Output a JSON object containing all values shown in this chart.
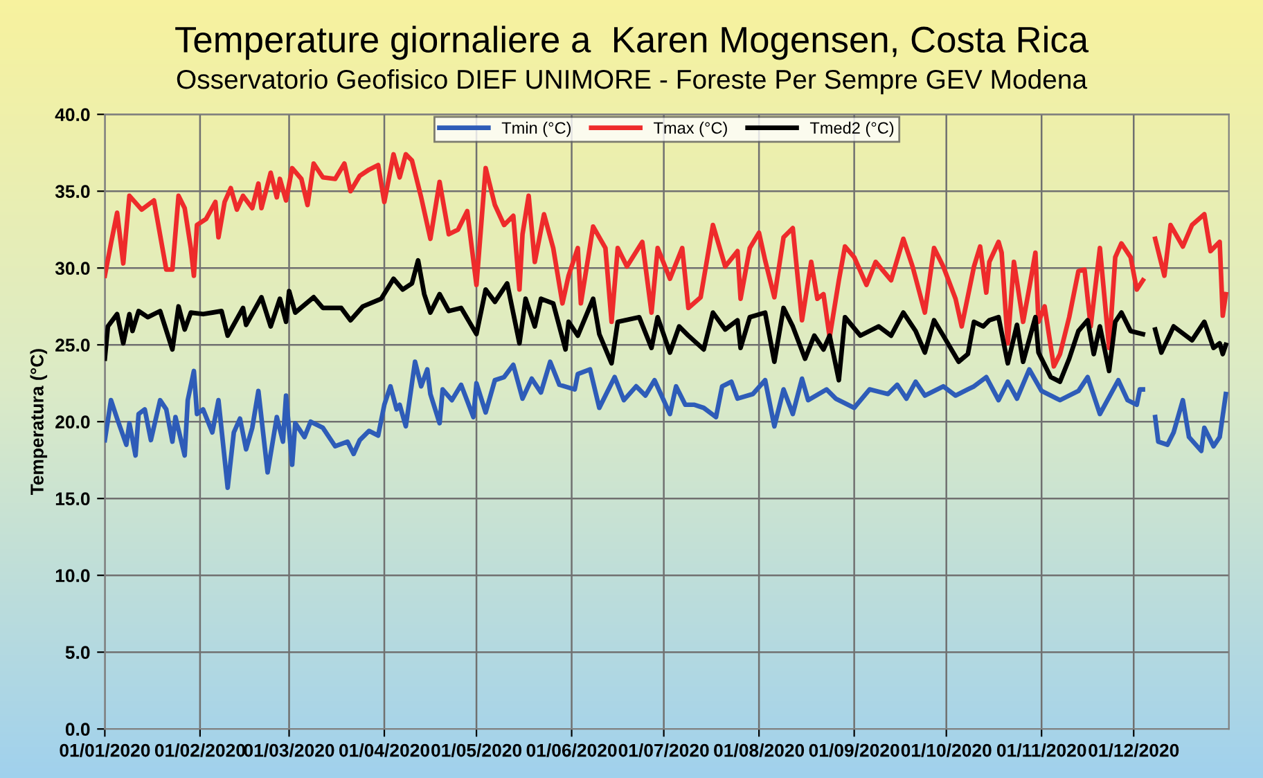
{
  "chart_data": {
    "type": "line",
    "title": "Temperature giornaliere a  Karen Mogensen, Costa Rica",
    "subtitle": "Osservatorio Geofisico DIEF UNIMORE - Foreste Per Sempre GEV Modena",
    "ylabel": "Temperatura (°C)",
    "xlim": [
      "2020-01-01",
      "2021-01-01"
    ],
    "xticks": [
      {
        "value": "2020-01-01",
        "label": "01/01/2020"
      },
      {
        "value": "2020-02-01",
        "label": "01/02/2020"
      },
      {
        "value": "2020-03-01",
        "label": "01/03/2020"
      },
      {
        "value": "2020-04-01",
        "label": "01/04/2020"
      },
      {
        "value": "2020-05-01",
        "label": "01/05/2020"
      },
      {
        "value": "2020-06-01",
        "label": "01/06/2020"
      },
      {
        "value": "2020-07-01",
        "label": "01/07/2020"
      },
      {
        "value": "2020-08-01",
        "label": "01/08/2020"
      },
      {
        "value": "2020-09-01",
        "label": "01/09/2020"
      },
      {
        "value": "2020-10-01",
        "label": "01/10/2020"
      },
      {
        "value": "2020-11-01",
        "label": "01/11/2020"
      },
      {
        "value": "2020-12-01",
        "label": "01/12/2020"
      }
    ],
    "ylim": [
      0,
      40
    ],
    "yticks": [
      {
        "value": 0,
        "label": "0.0"
      },
      {
        "value": 5,
        "label": "5.0"
      },
      {
        "value": 10,
        "label": "10.0"
      },
      {
        "value": 15,
        "label": "15.0"
      },
      {
        "value": 20,
        "label": "20.0"
      },
      {
        "value": 25,
        "label": "25.0"
      },
      {
        "value": 30,
        "label": "30.0"
      },
      {
        "value": 35,
        "label": "35.0"
      },
      {
        "value": 40,
        "label": "40.0"
      }
    ],
    "grid": true,
    "legend": "top",
    "marker": "none",
    "line_style": "solid",
    "series": [
      {
        "name": "Tmin (°C)",
        "color": "#2e5cb8",
        "x": [
          "2020-01-01",
          "2020-01-03",
          "2020-01-05",
          "2020-01-08",
          "2020-01-09",
          "2020-01-11",
          "2020-01-12",
          "2020-01-14",
          "2020-01-16",
          "2020-01-19",
          "2020-01-21",
          "2020-01-23",
          "2020-01-24",
          "2020-01-27",
          "2020-01-28",
          "2020-01-30",
          "2020-01-31",
          "2020-02-02",
          "2020-02-05",
          "2020-02-07",
          "2020-02-10",
          "2020-02-12",
          "2020-02-14",
          "2020-02-16",
          "2020-02-18",
          "2020-02-20",
          "2020-02-23",
          "2020-02-26",
          "2020-02-28",
          "2020-02-29",
          "2020-03-02",
          "2020-03-03",
          "2020-03-06",
          "2020-03-08",
          "2020-03-12",
          "2020-03-16",
          "2020-03-20",
          "2020-03-22",
          "2020-03-24",
          "2020-03-27",
          "2020-03-30",
          "2020-04-01",
          "2020-04-03",
          "2020-04-05",
          "2020-04-06",
          "2020-04-08",
          "2020-04-11",
          "2020-04-13",
          "2020-04-15",
          "2020-04-16",
          "2020-04-19",
          "2020-04-20",
          "2020-04-23",
          "2020-04-26",
          "2020-04-30",
          "2020-05-01",
          "2020-05-04",
          "2020-05-07",
          "2020-05-10",
          "2020-05-13",
          "2020-05-16",
          "2020-05-19",
          "2020-05-22",
          "2020-05-25",
          "2020-05-28",
          "2020-06-02",
          "2020-06-03",
          "2020-06-07",
          "2020-06-10",
          "2020-06-15",
          "2020-06-18",
          "2020-06-22",
          "2020-06-25",
          "2020-06-28",
          "2020-07-03",
          "2020-07-05",
          "2020-07-08",
          "2020-07-11",
          "2020-07-14",
          "2020-07-18",
          "2020-07-20",
          "2020-07-23",
          "2020-07-25",
          "2020-07-30",
          "2020-08-03",
          "2020-08-06",
          "2020-08-09",
          "2020-08-12",
          "2020-08-15",
          "2020-08-17",
          "2020-08-23",
          "2020-08-26",
          "2020-09-01",
          "2020-09-06",
          "2020-09-12",
          "2020-09-15",
          "2020-09-18",
          "2020-09-21",
          "2020-09-24",
          "2020-09-30",
          "2020-10-04",
          "2020-10-08",
          "2020-10-10",
          "2020-10-14",
          "2020-10-18",
          "2020-10-21",
          "2020-10-24",
          "2020-10-28",
          "2020-11-01",
          "2020-11-07",
          "2020-11-13",
          "2020-11-16",
          "2020-11-20",
          "2020-11-26",
          "2020-11-29",
          "2020-12-02",
          "2020-12-03",
          "2020-12-04",
          "2020-12-06",
          "2020-12-08",
          "2020-12-09",
          "2020-12-12",
          "2020-12-14",
          "2020-12-17",
          "2020-12-19",
          "2020-12-23",
          "2020-12-24",
          "2020-12-27",
          "2020-12-29",
          "2020-12-31"
        ],
        "values": [
          18.8,
          21.4,
          20.2,
          18.5,
          19.9,
          17.8,
          20.5,
          20.8,
          18.8,
          21.4,
          20.8,
          18.7,
          20.3,
          17.8,
          21.4,
          23.3,
          20.5,
          20.8,
          19.3,
          21.4,
          15.7,
          19.3,
          20.2,
          18.2,
          19.6,
          22.0,
          16.7,
          20.3,
          18.7,
          21.7,
          17.2,
          19.9,
          19.0,
          20.0,
          19.6,
          18.4,
          18.7,
          17.9,
          18.8,
          19.4,
          19.1,
          21.1,
          22.3,
          20.8,
          21.1,
          19.7,
          23.9,
          22.3,
          23.4,
          21.8,
          19.9,
          22.1,
          21.4,
          22.4,
          20.3,
          22.5,
          20.6,
          22.7,
          22.9,
          23.7,
          21.5,
          22.8,
          21.9,
          23.9,
          22.4,
          22.1,
          23.1,
          23.4,
          20.9,
          22.9,
          21.4,
          22.3,
          21.7,
          22.7,
          20.5,
          22.3,
          21.1,
          21.1,
          20.9,
          20.3,
          22.3,
          22.6,
          21.5,
          21.8,
          22.7,
          19.7,
          22.1,
          20.5,
          22.8,
          21.4,
          22.1,
          21.5,
          20.9,
          22.1,
          21.8,
          22.4,
          21.5,
          22.6,
          21.7,
          22.3,
          21.7,
          22.1,
          22.3,
          22.9,
          21.4,
          22.6,
          21.5,
          23.4,
          22.0,
          21.4,
          22.0,
          22.9,
          20.5,
          22.7,
          21.4,
          21.1,
          22.1,
          22.1,
          null,
          20.3,
          18.7,
          18.5,
          19.3,
          21.4,
          19.0,
          18.1,
          19.6,
          18.4,
          19.0,
          21.8
        ]
      },
      {
        "name": "Tmax (°C)",
        "color": "#ee2b2b",
        "x": [
          "2020-01-01",
          "2020-01-03",
          "2020-01-05",
          "2020-01-07",
          "2020-01-09",
          "2020-01-13",
          "2020-01-17",
          "2020-01-21",
          "2020-01-23",
          "2020-01-25",
          "2020-01-27",
          "2020-01-29",
          "2020-01-30",
          "2020-01-31",
          "2020-02-03",
          "2020-02-06",
          "2020-02-07",
          "2020-02-09",
          "2020-02-11",
          "2020-02-13",
          "2020-02-15",
          "2020-02-18",
          "2020-02-20",
          "2020-02-21",
          "2020-02-24",
          "2020-02-26",
          "2020-02-27",
          "2020-02-29",
          "2020-03-02",
          "2020-03-05",
          "2020-03-07",
          "2020-03-09",
          "2020-03-12",
          "2020-03-16",
          "2020-03-19",
          "2020-03-21",
          "2020-03-24",
          "2020-03-27",
          "2020-03-30",
          "2020-04-01",
          "2020-04-04",
          "2020-04-06",
          "2020-04-08",
          "2020-04-10",
          "2020-04-13",
          "2020-04-16",
          "2020-04-19",
          "2020-04-22",
          "2020-04-25",
          "2020-04-28",
          "2020-05-01",
          "2020-05-04",
          "2020-05-07",
          "2020-05-10",
          "2020-05-13",
          "2020-05-15",
          "2020-05-16",
          "2020-05-18",
          "2020-05-20",
          "2020-05-23",
          "2020-05-26",
          "2020-05-29",
          "2020-05-31",
          "2020-06-03",
          "2020-06-04",
          "2020-06-08",
          "2020-06-12",
          "2020-06-14",
          "2020-06-16",
          "2020-06-19",
          "2020-06-24",
          "2020-06-27",
          "2020-06-29",
          "2020-07-03",
          "2020-07-07",
          "2020-07-09",
          "2020-07-13",
          "2020-07-17",
          "2020-07-21",
          "2020-07-25",
          "2020-07-26",
          "2020-07-29",
          "2020-08-01",
          "2020-08-03",
          "2020-08-06",
          "2020-08-09",
          "2020-08-12",
          "2020-08-15",
          "2020-08-18",
          "2020-08-20",
          "2020-08-22",
          "2020-08-24",
          "2020-08-27",
          "2020-08-29",
          "2020-09-01",
          "2020-09-05",
          "2020-09-08",
          "2020-09-13",
          "2020-09-17",
          "2020-09-20",
          "2020-09-24",
          "2020-09-27",
          "2020-09-30",
          "2020-10-04",
          "2020-10-06",
          "2020-10-10",
          "2020-10-12",
          "2020-10-14",
          "2020-10-15",
          "2020-10-18",
          "2020-10-19",
          "2020-10-21",
          "2020-10-23",
          "2020-10-26",
          "2020-10-28",
          "2020-10-30",
          "2020-10-31",
          "2020-11-02",
          "2020-11-05",
          "2020-11-07",
          "2020-11-10",
          "2020-11-13",
          "2020-11-15",
          "2020-11-17",
          "2020-11-20",
          "2020-11-23",
          "2020-11-25",
          "2020-11-27",
          "2020-11-30",
          "2020-12-02",
          "2020-12-04",
          "2020-12-06",
          "2020-12-08",
          "2020-12-11",
          "2020-12-13",
          "2020-12-17",
          "2020-12-20",
          "2020-12-24",
          "2020-12-26",
          "2020-12-29",
          "2020-12-30",
          "2020-12-31"
        ],
        "values": [
          29.5,
          31.6,
          33.6,
          30.3,
          34.7,
          33.8,
          34.4,
          29.9,
          29.9,
          34.7,
          33.9,
          31.3,
          29.5,
          32.8,
          33.2,
          34.3,
          32.0,
          34.3,
          35.2,
          33.8,
          34.7,
          33.9,
          35.5,
          33.9,
          36.2,
          34.6,
          35.8,
          34.4,
          36.5,
          35.8,
          34.1,
          36.8,
          35.9,
          35.8,
          36.8,
          35.0,
          36.0,
          36.4,
          36.7,
          34.3,
          37.4,
          35.9,
          37.4,
          37.0,
          34.6,
          31.9,
          35.6,
          32.2,
          32.5,
          33.7,
          28.9,
          36.5,
          34.1,
          32.8,
          33.4,
          28.6,
          32.2,
          34.7,
          30.4,
          33.5,
          31.3,
          27.7,
          29.5,
          31.3,
          27.7,
          32.7,
          31.3,
          26.5,
          31.3,
          30.1,
          31.7,
          27.1,
          31.3,
          29.3,
          31.3,
          27.4,
          28.1,
          32.8,
          30.1,
          31.1,
          28.0,
          31.3,
          32.3,
          30.5,
          28.1,
          32.0,
          32.6,
          26.6,
          30.4,
          28.0,
          28.3,
          25.5,
          29.2,
          31.4,
          30.7,
          28.9,
          30.4,
          29.2,
          31.9,
          30.1,
          27.1,
          31.3,
          30.1,
          28.0,
          26.2,
          30.1,
          31.4,
          28.4,
          30.4,
          31.7,
          31.0,
          25.1,
          30.4,
          26.5,
          28.7,
          31.0,
          26.5,
          27.5,
          23.6,
          24.4,
          26.8,
          29.8,
          29.9,
          26.2,
          31.3,
          24.8,
          30.7,
          31.6,
          30.7,
          28.6,
          29.2,
          null,
          31.9,
          29.5,
          32.8,
          31.4,
          32.8,
          33.5,
          31.1,
          31.7,
          26.9,
          28.3
        ]
      },
      {
        "name": "Tmed2 (°C)",
        "color": "#000000",
        "x": [
          "2020-01-01",
          "2020-01-02",
          "2020-01-05",
          "2020-01-07",
          "2020-01-09",
          "2020-01-10",
          "2020-01-12",
          "2020-01-15",
          "2020-01-19",
          "2020-01-23",
          "2020-01-25",
          "2020-01-27",
          "2020-01-29",
          "2020-02-02",
          "2020-02-05",
          "2020-02-08",
          "2020-02-10",
          "2020-02-15",
          "2020-02-16",
          "2020-02-21",
          "2020-02-24",
          "2020-02-27",
          "2020-02-29",
          "2020-03-01",
          "2020-03-03",
          "2020-03-09",
          "2020-03-12",
          "2020-03-18",
          "2020-03-21",
          "2020-03-25",
          "2020-03-31",
          "2020-04-04",
          "2020-04-07",
          "2020-04-10",
          "2020-04-12",
          "2020-04-14",
          "2020-04-16",
          "2020-04-19",
          "2020-04-22",
          "2020-04-26",
          "2020-05-01",
          "2020-05-04",
          "2020-05-07",
          "2020-05-11",
          "2020-05-15",
          "2020-05-17",
          "2020-05-20",
          "2020-05-22",
          "2020-05-26",
          "2020-05-30",
          "2020-05-31",
          "2020-06-03",
          "2020-06-08",
          "2020-06-10",
          "2020-06-14",
          "2020-06-16",
          "2020-06-23",
          "2020-06-27",
          "2020-06-29",
          "2020-07-03",
          "2020-07-06",
          "2020-07-09",
          "2020-07-14",
          "2020-07-17",
          "2020-07-21",
          "2020-07-25",
          "2020-07-26",
          "2020-07-29",
          "2020-08-03",
          "2020-08-06",
          "2020-08-09",
          "2020-08-12",
          "2020-08-16",
          "2020-08-19",
          "2020-08-22",
          "2020-08-24",
          "2020-08-27",
          "2020-08-29",
          "2020-09-03",
          "2020-09-09",
          "2020-09-13",
          "2020-09-17",
          "2020-09-21",
          "2020-09-24",
          "2020-09-27",
          "2020-09-30",
          "2020-10-05",
          "2020-10-08",
          "2020-10-10",
          "2020-10-13",
          "2020-10-15",
          "2020-10-18",
          "2020-10-21",
          "2020-10-24",
          "2020-10-26",
          "2020-10-30",
          "2020-10-31",
          "2020-11-04",
          "2020-11-07",
          "2020-11-10",
          "2020-11-13",
          "2020-11-16",
          "2020-11-18",
          "2020-11-20",
          "2020-11-23",
          "2020-11-25",
          "2020-11-27",
          "2020-11-30",
          "2020-12-04",
          "2020-12-06",
          "2020-12-08",
          "2020-12-10",
          "2020-12-14",
          "2020-12-20",
          "2020-12-24",
          "2020-12-27",
          "2020-12-29",
          "2020-12-30",
          "2020-12-31"
        ],
        "values": [
          24.1,
          26.2,
          27.0,
          25.1,
          27.0,
          25.9,
          27.2,
          26.8,
          27.2,
          24.7,
          27.5,
          26.0,
          27.1,
          27.0,
          27.1,
          27.2,
          25.6,
          27.4,
          26.3,
          28.1,
          26.2,
          28.0,
          26.5,
          28.5,
          27.1,
          28.1,
          27.4,
          27.4,
          26.6,
          27.5,
          28.0,
          29.3,
          28.6,
          29.0,
          30.5,
          28.3,
          27.1,
          28.3,
          27.2,
          27.4,
          25.7,
          28.6,
          27.8,
          29.0,
          25.1,
          28.0,
          26.2,
          28.0,
          27.7,
          24.7,
          26.5,
          25.6,
          28.0,
          25.7,
          23.8,
          26.5,
          26.8,
          24.8,
          26.8,
          24.5,
          26.2,
          25.6,
          24.7,
          27.1,
          26.0,
          26.6,
          24.8,
          26.8,
          27.1,
          23.9,
          27.4,
          26.2,
          24.1,
          25.6,
          24.7,
          25.6,
          22.7,
          26.8,
          25.6,
          26.2,
          25.6,
          27.1,
          25.9,
          24.5,
          26.6,
          25.6,
          23.9,
          24.4,
          26.5,
          26.2,
          26.6,
          26.8,
          23.8,
          26.3,
          23.9,
          26.8,
          24.5,
          22.9,
          22.6,
          24.1,
          25.9,
          26.6,
          24.4,
          26.2,
          23.3,
          26.5,
          27.1,
          25.9,
          25.7,
          null,
          26.0,
          24.5,
          26.2,
          25.3,
          26.5,
          24.8,
          25.1,
          24.4,
          25.0
        ]
      }
    ]
  }
}
